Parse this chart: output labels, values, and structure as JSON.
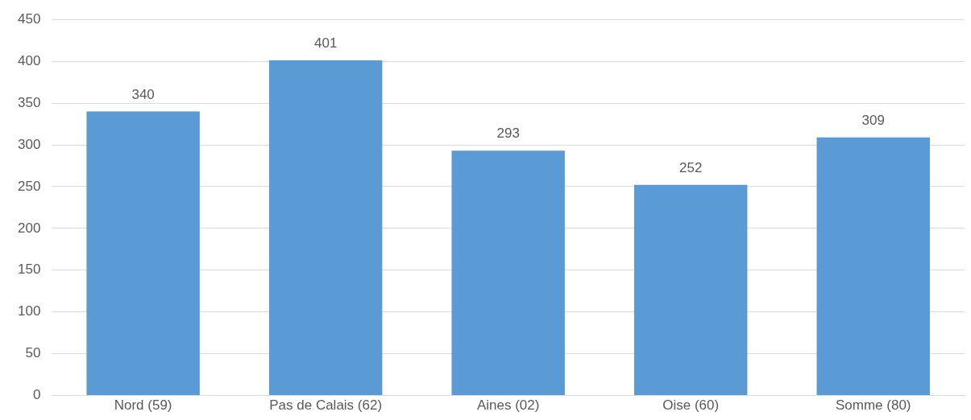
{
  "chart_data": {
    "type": "bar",
    "categories": [
      "Nord (59)",
      "Pas de Calais (62)",
      "Aines (02)",
      "Oise (60)",
      "Somme (80)"
    ],
    "values": [
      340,
      401,
      293,
      252,
      309
    ],
    "color": "#5b9bd5",
    "ylim": [
      0,
      450
    ],
    "yticks": [
      0,
      50,
      100,
      150,
      200,
      250,
      300,
      350,
      400,
      450
    ],
    "grid": "y",
    "data_labels": true,
    "legend": false
  }
}
